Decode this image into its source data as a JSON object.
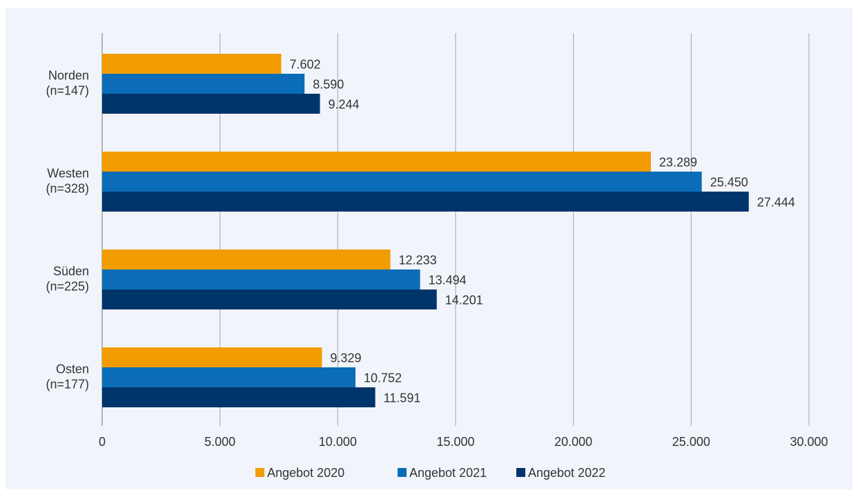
{
  "chart_data": {
    "type": "bar",
    "orientation": "horizontal",
    "categories": [
      [
        "Norden",
        "(n=147)"
      ],
      [
        "Westen",
        "(n=328)"
      ],
      [
        "Süden",
        "(n=225)"
      ],
      [
        "Osten",
        "(n=177)"
      ]
    ],
    "series": [
      {
        "name": "Angebot 2020",
        "color": "#f39c00",
        "values": [
          7602,
          23289,
          12233,
          9329
        ],
        "labels": [
          "7.602",
          "23.289",
          "12.233",
          "9.329"
        ]
      },
      {
        "name": "Angebot 2021",
        "color": "#0b6db7",
        "values": [
          8590,
          25450,
          13494,
          10752
        ],
        "labels": [
          "8.590",
          "25.450",
          "13.494",
          "10.752"
        ]
      },
      {
        "name": "Angebot 2022",
        "color": "#00356c",
        "values": [
          9244,
          27444,
          14201,
          11591
        ],
        "labels": [
          "9.244",
          "27.444",
          "14.201",
          "11.591"
        ]
      }
    ],
    "xlim": [
      0,
      30000
    ],
    "xticks": [
      0,
      5000,
      10000,
      15000,
      20000,
      25000,
      30000
    ],
    "xtick_labels": [
      "0",
      "5.000",
      "10.000",
      "15.000",
      "20.000",
      "25.000",
      "30.000"
    ],
    "grid": "vertical",
    "legend": "bottom",
    "title": "",
    "xlabel": "",
    "ylabel": ""
  }
}
